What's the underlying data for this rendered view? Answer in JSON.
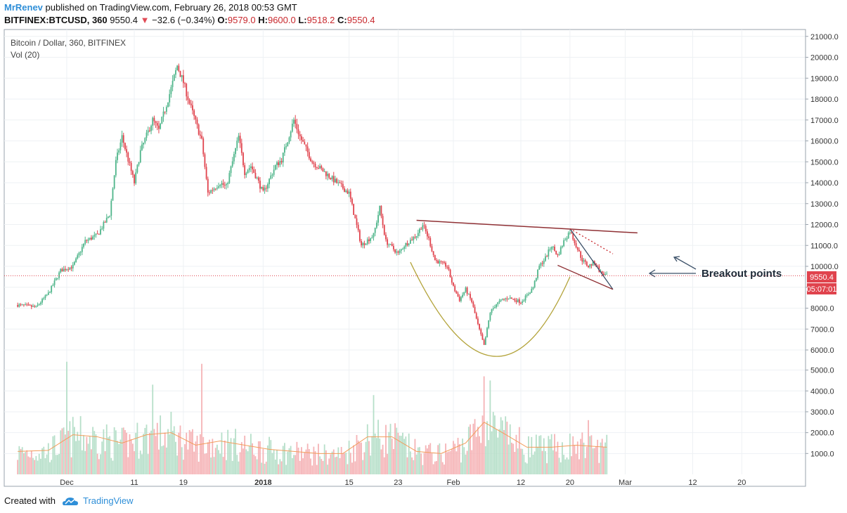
{
  "header": {
    "author": "MrRenev",
    "published": "published on TradingView.com, February 26, 2018 00:53 GMT",
    "symbol": "BITFINEX:BTCUSD, 360",
    "last": "9550.4",
    "arrow": "▼",
    "change": "−32.6 (−0.34%)",
    "o_label": "O:",
    "o_value": "9579.0",
    "h_label": "H:",
    "h_value": "9600.0",
    "l_label": "L:",
    "l_value": "9518.2",
    "c_label": "C:",
    "c_value": "9550.4"
  },
  "legend": {
    "title": "Bitcoin / Dollar, 360, BITFINEX",
    "volume": "Vol (20)"
  },
  "annotation": {
    "text": "Breakout points"
  },
  "price_tag": "9550.4",
  "countdown_tag": "05:07:01",
  "footer": {
    "created": "Created with",
    "brand": "TradingView",
    "brand_icon": "tradingview-cloud-icon"
  },
  "colors": {
    "up": "#4fb58a",
    "down": "#e0434d",
    "vol_up": "#b6dfc9",
    "vol_down": "#f5b3b6",
    "vol_ma": "#f39c5a",
    "brand": "#2f8fd8",
    "resistance": "#8f3034",
    "cup": "#b3a33a",
    "wedge": "#3b5068"
  },
  "chart_data": {
    "type": "candlestick",
    "title": "Bitcoin / Dollar, 360, BITFINEX",
    "y_ticks": [
      1000.0,
      2000.0,
      3000.0,
      4000.0,
      5000.0,
      6000.0,
      7000.0,
      8000.0,
      9000.0,
      10000.0,
      11000.0,
      12000.0,
      13000.0,
      14000.0,
      15000.0,
      16000.0,
      17000.0,
      18000.0,
      19000.0,
      20000.0,
      21000.0
    ],
    "y_tick_labels": [
      "1000.0",
      "2000.0",
      "3000.0",
      "4000.0",
      "5000.0",
      "6000.0",
      "7000.0",
      "8000.0",
      "9000.0",
      "10000.0",
      "11000.0",
      "12000.0",
      "13000.0",
      "14000.0",
      "15000.0",
      "16000.0",
      "17000.0",
      "18000.0",
      "19000.0",
      "20000.0",
      "21000.0"
    ],
    "x_ticks": [
      {
        "label": "Dec",
        "day": 7
      },
      {
        "label": "11",
        "day": 18
      },
      {
        "label": "19",
        "day": 26
      },
      {
        "label": "2018",
        "day": 39
      },
      {
        "label": "15",
        "day": 53
      },
      {
        "label": "23",
        "day": 61
      },
      {
        "label": "Feb",
        "day": 70
      },
      {
        "label": "12",
        "day": 81
      },
      {
        "label": "20",
        "day": 89
      },
      {
        "label": "Mar",
        "day": 98
      },
      {
        "label": "12",
        "day": 109
      },
      {
        "label": "20",
        "day": 117
      }
    ],
    "x_range_days": [
      -2,
      119
    ],
    "price_path": [
      [
        -1,
        8150
      ],
      [
        2,
        8050
      ],
      [
        4,
        8700
      ],
      [
        6,
        9800
      ],
      [
        8,
        10000
      ],
      [
        10,
        11200
      ],
      [
        12,
        11500
      ],
      [
        14,
        12500
      ],
      [
        15,
        15000
      ],
      [
        16,
        16200
      ],
      [
        18,
        14000
      ],
      [
        19,
        15500
      ],
      [
        21,
        17000
      ],
      [
        22,
        16500
      ],
      [
        24,
        18500
      ],
      [
        25,
        19600
      ],
      [
        26,
        18800
      ],
      [
        27,
        17800
      ],
      [
        29,
        16000
      ],
      [
        30,
        13500
      ],
      [
        32,
        14000
      ],
      [
        33,
        13800
      ],
      [
        35,
        16200
      ],
      [
        36,
        14500
      ],
      [
        37,
        14800
      ],
      [
        38,
        14200
      ],
      [
        39,
        13500
      ],
      [
        41,
        14800
      ],
      [
        42,
        15100
      ],
      [
        44,
        17000
      ],
      [
        45,
        16200
      ],
      [
        47,
        15000
      ],
      [
        49,
        14500
      ],
      [
        51,
        14000
      ],
      [
        53,
        13500
      ],
      [
        55,
        11000
      ],
      [
        57,
        11500
      ],
      [
        58,
        12800
      ],
      [
        59,
        11200
      ],
      [
        61,
        10600
      ],
      [
        62,
        11000
      ],
      [
        64,
        11500
      ],
      [
        65,
        12000
      ],
      [
        66,
        11300
      ],
      [
        67,
        10300
      ],
      [
        69,
        10000
      ],
      [
        70,
        9000
      ],
      [
        71,
        8400
      ],
      [
        72,
        8900
      ],
      [
        73,
        8300
      ],
      [
        74,
        7200
      ],
      [
        75,
        6200
      ],
      [
        76,
        7800
      ],
      [
        77,
        8200
      ],
      [
        78,
        8400
      ],
      [
        79,
        8500
      ],
      [
        80,
        8400
      ],
      [
        81,
        8300
      ],
      [
        82,
        8600
      ],
      [
        83,
        9000
      ],
      [
        84,
        10000
      ],
      [
        85,
        10400
      ],
      [
        86,
        11000
      ],
      [
        87,
        10500
      ],
      [
        88,
        11200
      ],
      [
        89,
        11700
      ],
      [
        90,
        11000
      ],
      [
        91,
        10300
      ],
      [
        92,
        10000
      ],
      [
        93,
        10200
      ],
      [
        94,
        9700
      ],
      [
        95,
        9550
      ]
    ],
    "volume_ma": [
      [
        -1,
        1100
      ],
      [
        4,
        1150
      ],
      [
        8,
        1900
      ],
      [
        12,
        1800
      ],
      [
        16,
        1500
      ],
      [
        20,
        1900
      ],
      [
        24,
        2000
      ],
      [
        28,
        1400
      ],
      [
        32,
        1600
      ],
      [
        36,
        1400
      ],
      [
        40,
        1200
      ],
      [
        44,
        1100
      ],
      [
        48,
        1000
      ],
      [
        52,
        1000
      ],
      [
        56,
        1800
      ],
      [
        60,
        1800
      ],
      [
        64,
        1100
      ],
      [
        68,
        1000
      ],
      [
        72,
        1500
      ],
      [
        75,
        2500
      ],
      [
        78,
        2000
      ],
      [
        82,
        1300
      ],
      [
        86,
        1300
      ],
      [
        90,
        1400
      ],
      [
        95,
        1300
      ]
    ],
    "volume_spikes": [
      [
        7,
        5400
      ],
      [
        21,
        4300
      ],
      [
        24,
        3000
      ],
      [
        29,
        5300
      ],
      [
        57,
        3800
      ],
      [
        75,
        4700
      ],
      [
        76,
        4500
      ],
      [
        92,
        2600
      ]
    ],
    "last_price": 9550.4,
    "resistance_line": [
      [
        64,
        12200
      ],
      [
        100,
        11600
      ]
    ],
    "cup_curve": [
      [
        63,
        10200
      ],
      [
        77,
        5700
      ],
      [
        89,
        9500
      ]
    ],
    "wedge": {
      "upper": [
        [
          89,
          11800
        ],
        [
          96,
          8900
        ]
      ],
      "lower": [
        [
          87,
          10050
        ],
        [
          96,
          8900
        ]
      ],
      "projection": [
        [
          89,
          11800
        ],
        [
          96,
          10600
        ]
      ]
    }
  }
}
